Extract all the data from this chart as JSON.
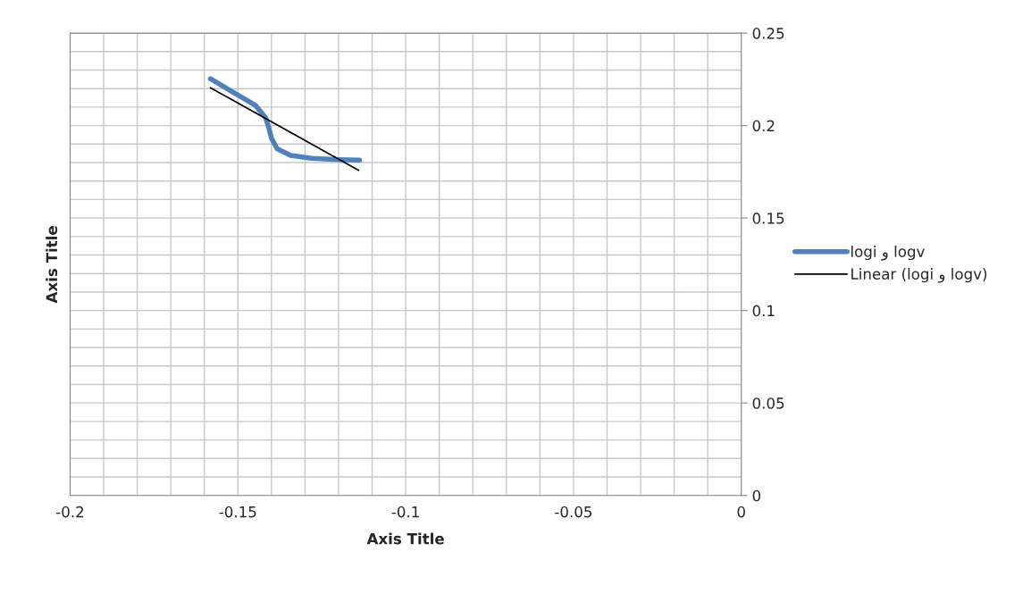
{
  "chart_data": {
    "type": "line",
    "xlabel": "Axis Title",
    "ylabel": "Axis Title",
    "xlim": [
      -0.2,
      0
    ],
    "xticks": [
      -0.2,
      -0.15,
      -0.1,
      -0.05,
      0
    ],
    "ylim": [
      0,
      0.25
    ],
    "yticks": [
      0,
      0.05,
      0.1,
      0.15,
      0.2,
      0.25
    ],
    "grid": true,
    "legend": "right",
    "series": [
      {
        "name": "logi و logv",
        "color": "#4f81bd",
        "x": [
          -0.1582,
          -0.15,
          -0.1447,
          -0.1418,
          -0.1409,
          -0.14,
          -0.1383,
          -0.1343,
          -0.128,
          -0.12,
          -0.1138
        ],
        "values": [
          0.2253,
          0.2165,
          0.2108,
          0.2044,
          0.1995,
          0.1931,
          0.1875,
          0.1839,
          0.1823,
          0.1816,
          0.1813
        ]
      },
      {
        "name": "Linear (logi و logv)",
        "color": "#000000",
        "x": [
          -0.1582,
          -0.114
        ],
        "values": [
          0.2205,
          0.1758
        ]
      }
    ]
  }
}
